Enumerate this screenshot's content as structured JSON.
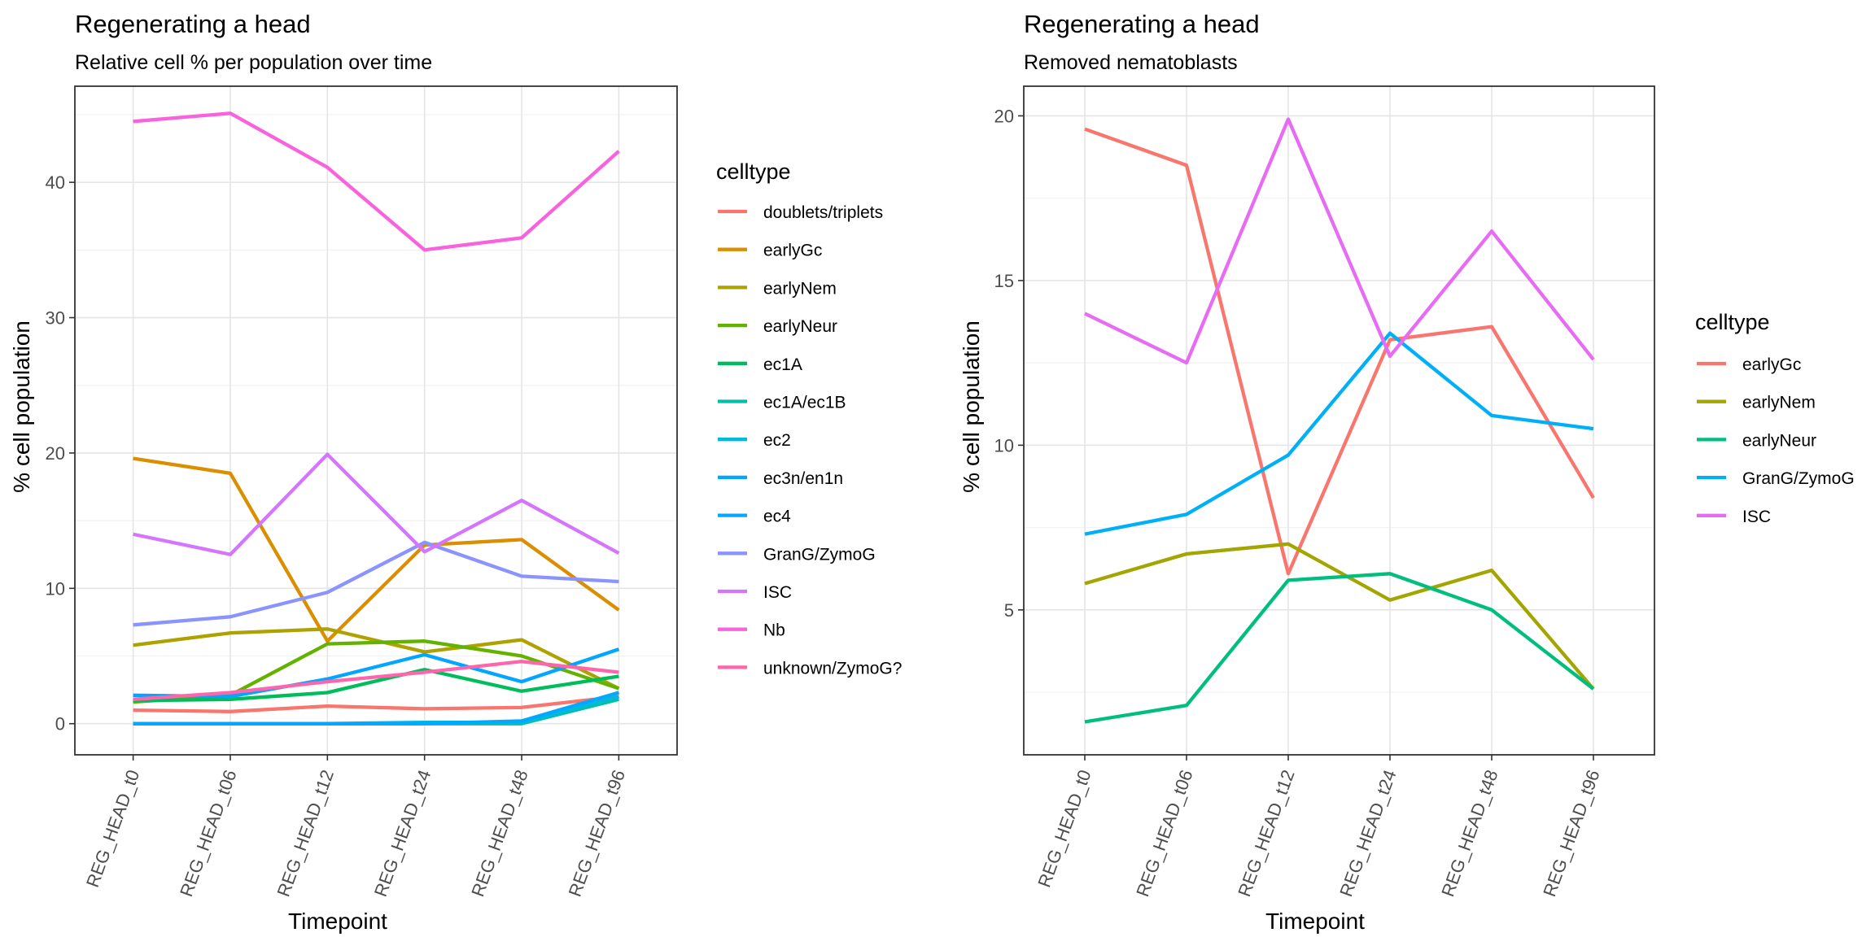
{
  "chart_data": [
    {
      "type": "line",
      "title": "Regenerating a head",
      "subtitle": "Relative cell % per population over time",
      "xlabel": "Timepoint",
      "ylabel": "% cell population",
      "legend_title": "celltype",
      "legend_position": "right",
      "grid": true,
      "ylim": [
        -2.3,
        47.1
      ],
      "yticks": [
        0,
        10,
        20,
        30,
        40
      ],
      "categories": [
        "REG_HEAD_t0",
        "REG_HEAD_t06",
        "REG_HEAD_t12",
        "REG_HEAD_t24",
        "REG_HEAD_t48",
        "REG_HEAD_t96"
      ],
      "series": [
        {
          "name": "doublets/triplets",
          "color": "#F8766D",
          "values": [
            1.0,
            0.9,
            1.3,
            1.1,
            1.2,
            2.0
          ]
        },
        {
          "name": "earlyGc",
          "color": "#DB8E00",
          "values": [
            19.6,
            18.5,
            6.1,
            13.2,
            13.6,
            8.4
          ]
        },
        {
          "name": "earlyNem",
          "color": "#AEA200",
          "values": [
            5.8,
            6.7,
            7.0,
            5.3,
            6.2,
            2.6
          ]
        },
        {
          "name": "earlyNeur",
          "color": "#64B200",
          "values": [
            1.6,
            2.1,
            5.9,
            6.1,
            5.0,
            2.6
          ]
        },
        {
          "name": "ec1A",
          "color": "#00BD5C",
          "values": [
            1.7,
            1.8,
            2.3,
            4.0,
            2.4,
            3.5
          ]
        },
        {
          "name": "ec1A/ec1B",
          "color": "#00C1A7",
          "values": [
            0.0,
            0.0,
            0.0,
            0.0,
            0.0,
            1.8
          ]
        },
        {
          "name": "ec2",
          "color": "#00BADE",
          "values": [
            0.0,
            0.0,
            0.0,
            0.1,
            0.1,
            2.0
          ]
        },
        {
          "name": "ec3n/en1n",
          "color": "#00A6FF",
          "values": [
            2.1,
            2.0,
            3.3,
            5.1,
            3.1,
            5.5
          ]
        },
        {
          "name": "ec4",
          "color": "#00A9FF",
          "values": [
            0.0,
            0.0,
            0.0,
            0.0,
            0.2,
            2.3
          ]
        },
        {
          "name": "GranG/ZymoG",
          "color": "#8B93FF",
          "values": [
            7.3,
            7.9,
            9.7,
            13.4,
            10.9,
            10.5
          ]
        },
        {
          "name": "ISC",
          "color": "#D575FE",
          "values": [
            14.0,
            12.5,
            19.9,
            12.7,
            16.5,
            12.6
          ]
        },
        {
          "name": "Nb",
          "color": "#F962DD",
          "values": [
            44.5,
            45.1,
            41.1,
            35.0,
            35.9,
            42.3
          ]
        },
        {
          "name": "unknown/ZymoG?",
          "color": "#FF65AC",
          "values": [
            1.8,
            2.3,
            3.1,
            3.8,
            4.6,
            3.8
          ]
        }
      ]
    },
    {
      "type": "line",
      "title": "Regenerating a head",
      "subtitle": "Removed nematoblasts",
      "xlabel": "Timepoint",
      "ylabel": "% cell population",
      "legend_title": "celltype",
      "legend_position": "right",
      "grid": true,
      "ylim": [
        0.6,
        20.9
      ],
      "yticks": [
        5,
        10,
        15,
        20
      ],
      "categories": [
        "REG_HEAD_t0",
        "REG_HEAD_t06",
        "REG_HEAD_t12",
        "REG_HEAD_t24",
        "REG_HEAD_t48",
        "REG_HEAD_t96"
      ],
      "series": [
        {
          "name": "earlyGc",
          "color": "#F8766D",
          "values": [
            19.6,
            18.5,
            6.1,
            13.2,
            13.6,
            8.4
          ]
        },
        {
          "name": "earlyNem",
          "color": "#A3A500",
          "values": [
            5.8,
            6.7,
            7.0,
            5.3,
            6.2,
            2.6
          ]
        },
        {
          "name": "earlyNeur",
          "color": "#00BF7D",
          "values": [
            1.6,
            2.1,
            5.9,
            6.1,
            5.0,
            2.6
          ]
        },
        {
          "name": "GranG/ZymoG",
          "color": "#00B0F6",
          "values": [
            7.3,
            7.9,
            9.7,
            13.4,
            10.9,
            10.5
          ]
        },
        {
          "name": "ISC",
          "color": "#E76BF3",
          "values": [
            14.0,
            12.5,
            19.9,
            12.7,
            16.5,
            12.6
          ]
        }
      ]
    }
  ]
}
